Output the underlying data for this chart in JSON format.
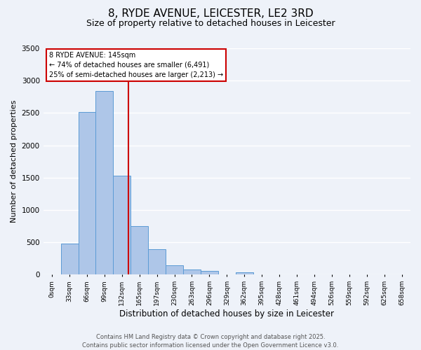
{
  "title": "8, RYDE AVENUE, LEICESTER, LE2 3RD",
  "subtitle": "Size of property relative to detached houses in Leicester",
  "xlabel": "Distribution of detached houses by size in Leicester",
  "ylabel": "Number of detached properties",
  "bar_labels": [
    "0sqm",
    "33sqm",
    "66sqm",
    "99sqm",
    "132sqm",
    "165sqm",
    "197sqm",
    "230sqm",
    "263sqm",
    "296sqm",
    "329sqm",
    "362sqm",
    "395sqm",
    "428sqm",
    "461sqm",
    "494sqm",
    "526sqm",
    "559sqm",
    "592sqm",
    "625sqm",
    "658sqm"
  ],
  "bar_values": [
    5,
    480,
    2520,
    2840,
    1530,
    750,
    390,
    150,
    80,
    55,
    0,
    40,
    0,
    0,
    0,
    0,
    0,
    0,
    0,
    0,
    0
  ],
  "bar_color": "#aec6e8",
  "bar_edge_color": "#5b9bd5",
  "ylim": [
    0,
    3500
  ],
  "yticks": [
    0,
    500,
    1000,
    1500,
    2000,
    2500,
    3000,
    3500
  ],
  "property_line_x": 4.36,
  "property_line_color": "#cc0000",
  "annotation_title": "8 RYDE AVENUE: 145sqm",
  "annotation_line1": "← 74% of detached houses are smaller (6,491)",
  "annotation_line2": "25% of semi-detached houses are larger (2,213) →",
  "annotation_box_color": "#cc0000",
  "footer_line1": "Contains HM Land Registry data © Crown copyright and database right 2025.",
  "footer_line2": "Contains public sector information licensed under the Open Government Licence v3.0.",
  "background_color": "#eef2f9",
  "grid_color": "#ffffff",
  "title_fontsize": 11,
  "subtitle_fontsize": 9
}
